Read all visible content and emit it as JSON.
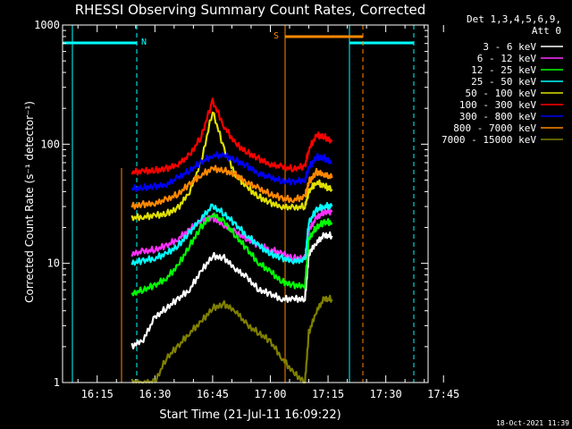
{
  "chart_data": {
    "type": "line",
    "title": "RHESSI Observing Summary Count Rates, Corrected",
    "xlabel": "Start Time (21-Jul-11 16:09:22)",
    "ylabel": "Corrected Count Rate (s⁻¹ detector⁻¹)",
    "ylog": true,
    "ylim": [
      1,
      1000
    ],
    "xlim_minutes": [
      6,
      101
    ],
    "yticks": [
      {
        "v": 1,
        "label": "1"
      },
      {
        "v": 10,
        "label": "10"
      },
      {
        "v": 100,
        "label": "100"
      },
      {
        "v": 1000,
        "label": "1000"
      }
    ],
    "xticks": [
      {
        "m": 15,
        "label": "16:15"
      },
      {
        "m": 30,
        "label": "16:30"
      },
      {
        "m": 45,
        "label": "16:45"
      },
      {
        "m": 60,
        "label": "17:00"
      },
      {
        "m": 75,
        "label": "17:15"
      },
      {
        "m": 90,
        "label": "17:30"
      },
      {
        "m": 105,
        "label": "17:45"
      }
    ],
    "legend_header": [
      "Det 1,3,4,5,6,9,",
      "Att 0"
    ],
    "legend_position": "top-right",
    "series": [
      {
        "name": "3 - 6 keV",
        "color": "#ffffff",
        "t": [
          24,
          27,
          30,
          33,
          36,
          39,
          42,
          45,
          48,
          51,
          54,
          57,
          60,
          63,
          66,
          69,
          70,
          72,
          74,
          76
        ],
        "v": [
          2,
          2.3,
          3.5,
          4.2,
          5,
          6,
          8.5,
          11.5,
          11,
          9,
          7.5,
          6,
          5.5,
          5,
          5,
          5,
          12,
          15,
          17,
          17
        ]
      },
      {
        "name": "6 - 12 keV",
        "color": "#ff30ff",
        "t": [
          24,
          27,
          30,
          33,
          36,
          39,
          42,
          45,
          48,
          51,
          54,
          57,
          60,
          63,
          66,
          69,
          70,
          72,
          74,
          76
        ],
        "v": [
          12,
          12.5,
          13,
          14,
          16,
          19,
          23,
          24,
          21,
          18,
          16,
          14,
          13,
          12,
          11,
          11,
          19,
          24,
          27,
          27
        ]
      },
      {
        "name": "12 - 25 keV",
        "color": "#00ff00",
        "t": [
          24,
          27,
          30,
          33,
          36,
          39,
          42,
          45,
          48,
          51,
          54,
          57,
          60,
          63,
          66,
          69,
          70,
          72,
          74,
          76
        ],
        "v": [
          5.5,
          6,
          6.5,
          7.5,
          9.5,
          14,
          20,
          26,
          22,
          17,
          13,
          10,
          8.5,
          7,
          6.5,
          6.5,
          16,
          20,
          22,
          22
        ]
      },
      {
        "name": "25 - 50 keV",
        "color": "#00ffff",
        "t": [
          24,
          27,
          30,
          33,
          36,
          39,
          42,
          45,
          48,
          51,
          54,
          57,
          60,
          63,
          66,
          69,
          70,
          72,
          74,
          76
        ],
        "v": [
          10,
          10.5,
          11,
          12,
          14,
          18,
          24,
          30,
          26,
          21,
          17,
          14,
          12,
          11,
          10.5,
          10.5,
          22,
          28,
          30,
          30
        ]
      },
      {
        "name": "50 - 100 keV",
        "color": "#e0e000",
        "t": [
          24,
          27,
          30,
          33,
          36,
          39,
          42,
          45,
          48,
          51,
          54,
          57,
          60,
          63,
          66,
          69,
          70,
          72,
          74,
          76
        ],
        "v": [
          24,
          24.5,
          25,
          26,
          29,
          40,
          70,
          190,
          90,
          55,
          43,
          36,
          32,
          30,
          29,
          30,
          40,
          48,
          44,
          42
        ]
      },
      {
        "name": "100 - 300 keV",
        "color": "#ff0000",
        "t": [
          24,
          27,
          30,
          33,
          36,
          39,
          42,
          45,
          48,
          51,
          54,
          57,
          60,
          63,
          66,
          69,
          70,
          72,
          74,
          76
        ],
        "v": [
          58,
          59,
          60,
          62,
          68,
          80,
          115,
          230,
          140,
          100,
          85,
          75,
          68,
          64,
          62,
          65,
          90,
          118,
          115,
          105
        ]
      },
      {
        "name": "300 - 800 keV",
        "color": "#0000ff",
        "t": [
          24,
          27,
          30,
          33,
          36,
          39,
          42,
          45,
          48,
          51,
          54,
          57,
          60,
          63,
          66,
          69,
          70,
          72,
          74,
          76
        ],
        "v": [
          42,
          43,
          44,
          46,
          52,
          60,
          70,
          80,
          80,
          73,
          65,
          57,
          52,
          49,
          48,
          50,
          63,
          78,
          76,
          70
        ]
      },
      {
        "name": "800 - 7000 keV",
        "color": "#ff8800",
        "t": [
          24,
          27,
          30,
          33,
          36,
          39,
          42,
          45,
          48,
          51,
          54,
          57,
          60,
          63,
          66,
          69,
          70,
          72,
          74,
          76
        ],
        "v": [
          30,
          31,
          32,
          34,
          38,
          46,
          55,
          62,
          60,
          55,
          48,
          42,
          38,
          35,
          34,
          36,
          48,
          58,
          56,
          52
        ]
      },
      {
        "name": "7000 - 15000 keV",
        "color": "#808000",
        "t": [
          24,
          27,
          30,
          33,
          36,
          39,
          42,
          45,
          48,
          51,
          54,
          57,
          60,
          63,
          66,
          69,
          70,
          72,
          74,
          76
        ],
        "v": [
          1,
          1,
          1,
          1.6,
          2,
          2.6,
          3.2,
          4.2,
          4.5,
          4,
          3,
          2.6,
          2.2,
          1.6,
          1.2,
          1,
          2.6,
          4,
          5,
          5
        ]
      }
    ],
    "flag_markers": [
      {
        "label": "N",
        "color": "#00ffff"
      },
      {
        "label": "S",
        "color": "#ff8800"
      }
    ],
    "footer_date": "18-Oct-2021 11:39"
  }
}
